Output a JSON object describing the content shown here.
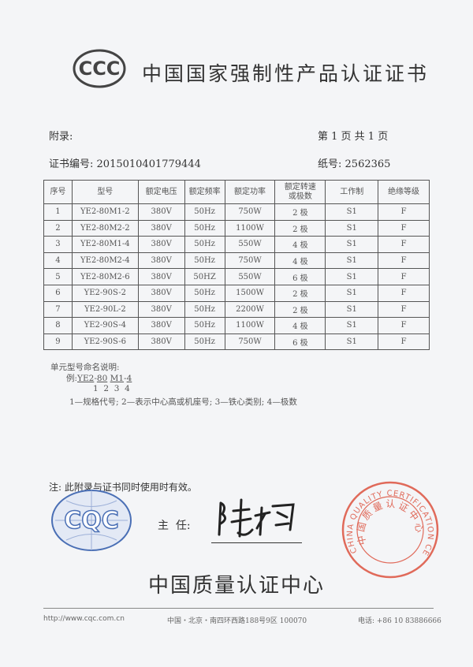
{
  "logo": {
    "text": "CCC"
  },
  "title": "中国国家强制性产品认证证书",
  "appendix_label": "附录:",
  "page_info": "第 1 页 共 1 页",
  "cert_no_label": "证书编号:",
  "cert_no": "2015010401779444",
  "paper_no_label": "纸号:",
  "paper_no": "2562365",
  "table": {
    "headers": [
      "序号",
      "型号",
      "额定电压",
      "额定频率",
      "额定功率",
      "额定转速或极数",
      "工作制",
      "绝缘等级"
    ],
    "rows": [
      [
        "1",
        "YE2-80M1-2",
        "380V",
        "50Hz",
        "750W",
        "2 极",
        "S1",
        "F"
      ],
      [
        "2",
        "YE2-80M2-2",
        "380V",
        "50Hz",
        "1100W",
        "2 极",
        "S1",
        "F"
      ],
      [
        "3",
        "YE2-80M1-4",
        "380V",
        "50Hz",
        "550W",
        "4 极",
        "S1",
        "F"
      ],
      [
        "4",
        "YE2-80M2-4",
        "380V",
        "50Hz",
        "750W",
        "4 极",
        "S1",
        "F"
      ],
      [
        "5",
        "YE2-80M2-6",
        "380V",
        "50HZ",
        "550W",
        "6 极",
        "S1",
        "F"
      ],
      [
        "6",
        "YE2-90S-2",
        "380V",
        "50Hz",
        "1500W",
        "2 极",
        "S1",
        "F"
      ],
      [
        "7",
        "YE2-90L-2",
        "380V",
        "50Hz",
        "2200W",
        "2 极",
        "S1",
        "F"
      ],
      [
        "8",
        "YE2-90S-4",
        "380V",
        "50Hz",
        "1100W",
        "4 极",
        "S1",
        "F"
      ],
      [
        "9",
        "YE2-90S-6",
        "380V",
        "50Hz",
        "750W",
        "6 极",
        "S1",
        "F"
      ]
    ]
  },
  "naming": {
    "heading": "单元型号命名说明:",
    "example_label": "例:",
    "parts": [
      "YE2",
      "-",
      "80",
      "M1",
      "-",
      "4"
    ],
    "indices": "1  2  3  4",
    "legend": "1—规格代号; 2—表示中心高或机座号; 3—铁心类别; 4—极数"
  },
  "validity_note": "注: 此附录与证书同时使用时有效。",
  "cqc_logo": "CQC",
  "director_label": "主  任:",
  "signature": "陆梅",
  "stamp": {
    "outer": "CHINA QUALITY CERTIFICATION CENTRE",
    "inner": "中国质量认证中心"
  },
  "issuer": "中国质量认证中心",
  "footer": {
    "url": "http://www.cqc.com.cn",
    "address": "中国・北京・南四环西路188号9区  100070",
    "phone": "电话: +86 10 83886666"
  },
  "colors": {
    "stamp": "#e06a5a",
    "cqc_blue": "#4a6fb5",
    "text": "#333333"
  }
}
